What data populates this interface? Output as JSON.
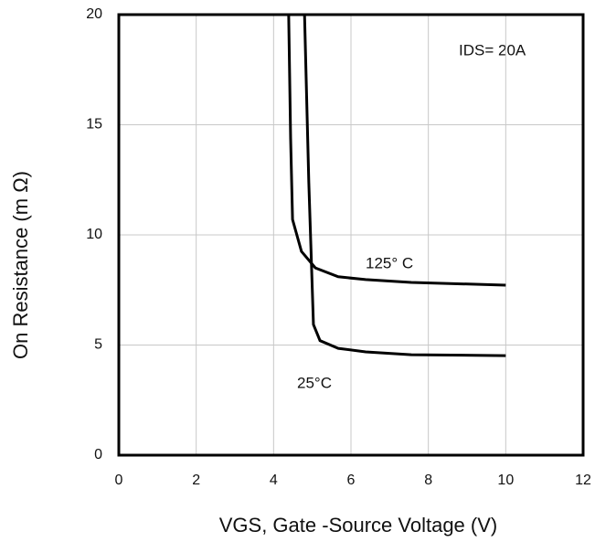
{
  "chart_data": {
    "type": "line",
    "xlabel": "VGS, Gate -Source Voltage (V)",
    "ylabel": "On Resistance (m Ω)",
    "annotation": "IDS= 20A",
    "xlim": [
      0,
      12
    ],
    "xticks": [
      0,
      2,
      4,
      6,
      8,
      10,
      12
    ],
    "ylim": [
      0,
      20
    ],
    "yticks": [
      0,
      5,
      10,
      15,
      20
    ],
    "grid": true,
    "series": [
      {
        "name": "125° C",
        "color": "#000000",
        "x": [
          4.39,
          4.44,
          4.49,
          4.72,
          5.08,
          5.67,
          6.38,
          7.56,
          10.0
        ],
        "values": [
          20,
          14.4,
          10.7,
          9.25,
          8.5,
          8.1,
          7.97,
          7.84,
          7.72
        ]
      },
      {
        "name": "25°C",
        "color": "#000000",
        "x": [
          4.8,
          4.91,
          5.03,
          5.2,
          5.67,
          6.38,
          7.56,
          10.0
        ],
        "values": [
          20,
          12.4,
          5.93,
          5.2,
          4.85,
          4.69,
          4.56,
          4.52
        ]
      }
    ]
  }
}
